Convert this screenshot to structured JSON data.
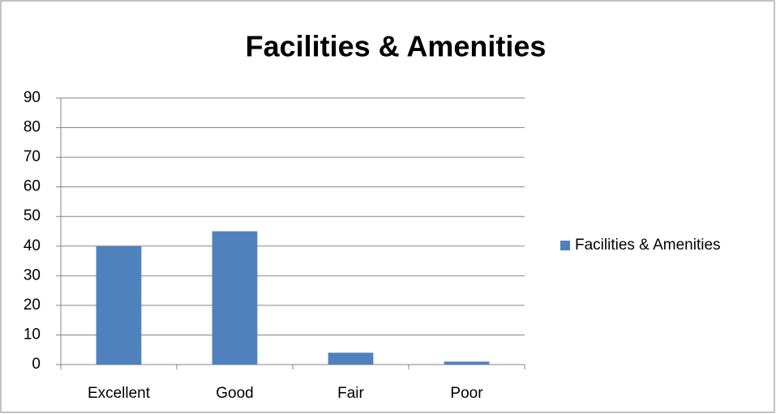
{
  "chart_data": {
    "type": "bar",
    "title": "Facilities & Amenities",
    "categories": [
      "Excellent",
      "Good",
      "Fair",
      "Poor"
    ],
    "series": [
      {
        "name": "Facilities & Amenities",
        "color": "#4f81bd",
        "values": [
          40,
          45,
          4,
          1
        ]
      }
    ],
    "ylim": [
      0,
      90
    ],
    "yticks": [
      0,
      10,
      20,
      30,
      40,
      50,
      60,
      70,
      80,
      90
    ],
    "grid": true,
    "legend": "right"
  }
}
